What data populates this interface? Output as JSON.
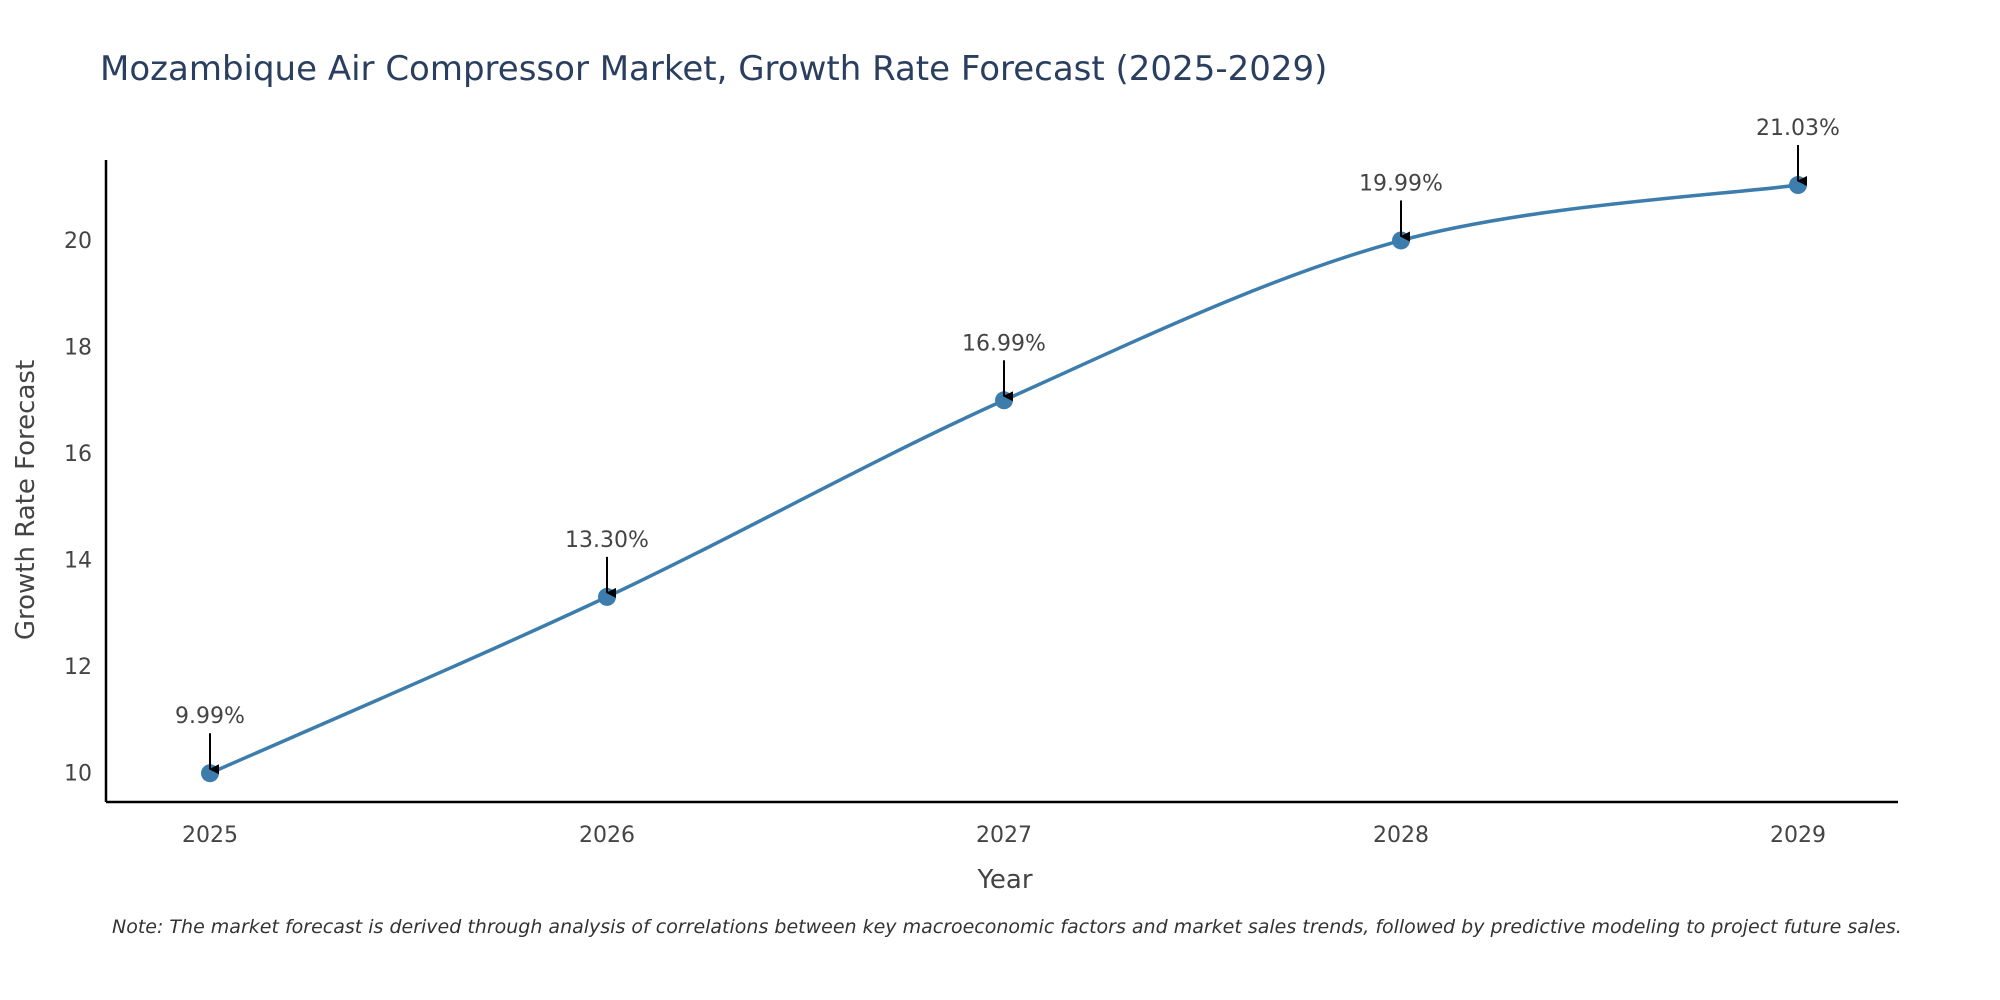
{
  "chart_data": {
    "type": "line",
    "title": "Mozambique Air Compressor Market, Growth Rate Forecast (2025-2029)",
    "xlabel": "Year",
    "ylabel": "Growth Rate Forecast",
    "categories": [
      "2025",
      "2026",
      "2027",
      "2028",
      "2029"
    ],
    "values": [
      9.99,
      13.3,
      16.99,
      19.99,
      21.03
    ],
    "data_labels": [
      "9.99%",
      "13.30%",
      "16.99%",
      "19.99%",
      "21.03%"
    ],
    "yticks": [
      10,
      12,
      14,
      16,
      18,
      20
    ],
    "ylim": [
      9.45,
      21.5
    ],
    "line_color": "#3d7dad",
    "smoothing": "spline",
    "grid": false
  },
  "note": "Note: The market forecast is derived through analysis of correlations between key macroeconomic factors and market sales trends, followed by predictive modeling to project future sales."
}
